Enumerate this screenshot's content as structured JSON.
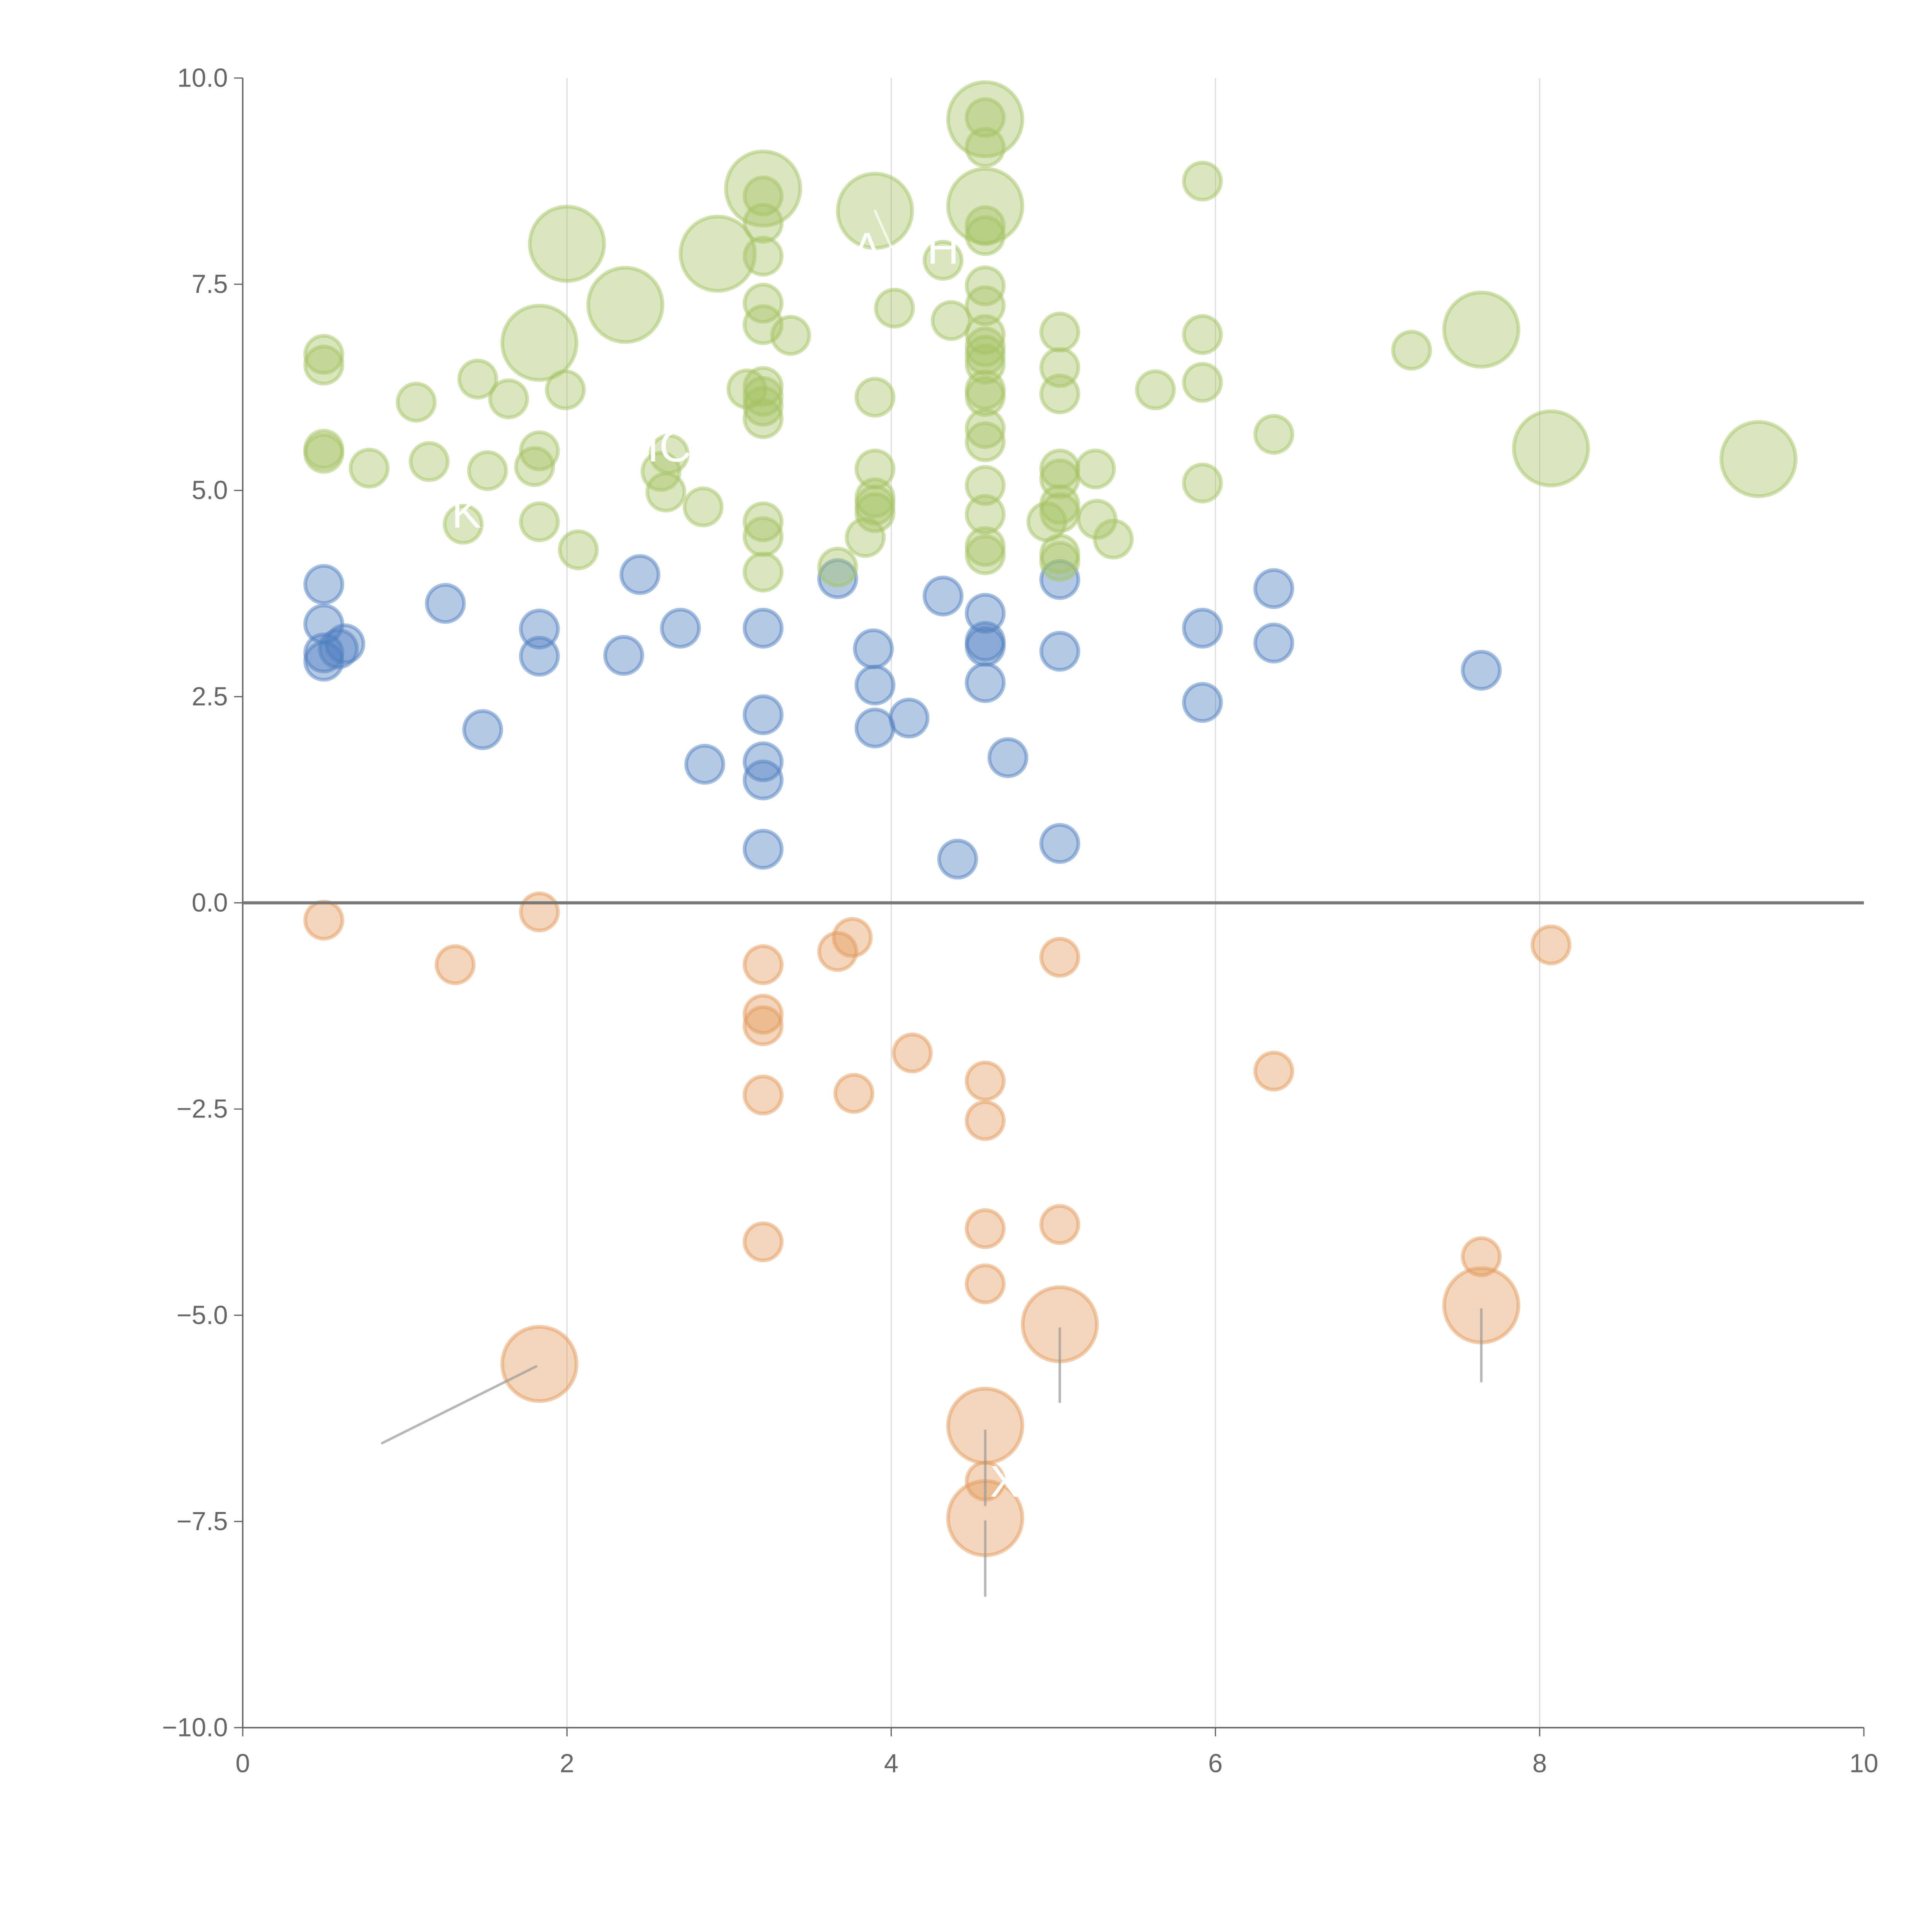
{
  "chart_data": {
    "type": "scatter",
    "title": "",
    "xlabel": "",
    "ylabel": "",
    "xlim": [
      0,
      10
    ],
    "ylim": [
      -10,
      10
    ],
    "x_ticks": [
      "0",
      "2",
      "4",
      "6",
      "8",
      "10"
    ],
    "y_ticks": [
      "10.0",
      "7.5",
      "5.0",
      "2.5",
      "0.0",
      "−2.5",
      "−5.0",
      "−7.5",
      "−10.0"
    ],
    "x_tick_values": [
      0,
      2,
      4,
      6,
      8,
      10
    ],
    "y_tick_values": [
      10,
      7.5,
      5,
      2.5,
      0,
      -2.5,
      -5,
      -7.5,
      -10
    ],
    "grid": "vertical lines at x ticks",
    "zero_line": true,
    "series": [
      {
        "name": "blue",
        "color": "#4f7fc0",
        "points": [
          [
            0.5,
            3.86,
            1
          ],
          [
            0.5,
            3.38,
            1
          ],
          [
            0.5,
            3.03,
            1
          ],
          [
            0.5,
            2.93,
            1
          ],
          [
            0.63,
            3.14,
            1
          ],
          [
            0.59,
            3.08,
            1
          ],
          [
            1.25,
            3.63,
            1
          ],
          [
            1.48,
            2.1,
            1
          ],
          [
            1.83,
            3.32,
            1
          ],
          [
            1.83,
            2.99,
            1
          ],
          [
            2.35,
            3.0,
            1
          ],
          [
            2.45,
            3.98,
            1
          ],
          [
            2.7,
            3.33,
            1
          ],
          [
            2.85,
            1.68,
            1
          ],
          [
            3.21,
            3.33,
            1
          ],
          [
            3.21,
            2.28,
            1
          ],
          [
            3.21,
            1.71,
            1
          ],
          [
            3.21,
            1.49,
            1
          ],
          [
            3.21,
            0.65,
            1
          ],
          [
            3.67,
            3.93,
            1
          ],
          [
            3.89,
            3.08,
            1
          ],
          [
            3.9,
            2.64,
            1
          ],
          [
            3.9,
            2.12,
            1
          ],
          [
            4.11,
            2.24,
            1
          ],
          [
            4.32,
            3.72,
            1
          ],
          [
            4.41,
            0.53,
            1
          ],
          [
            4.58,
            3.51,
            1
          ],
          [
            4.58,
            3.17,
            1
          ],
          [
            4.58,
            3.11,
            1
          ],
          [
            4.58,
            2.67,
            1
          ],
          [
            4.72,
            1.76,
            1
          ],
          [
            5.04,
            3.92,
            1
          ],
          [
            5.04,
            3.05,
            1
          ],
          [
            5.04,
            0.72,
            1
          ],
          [
            5.92,
            3.33,
            1
          ],
          [
            5.92,
            2.43,
            1
          ],
          [
            6.36,
            3.81,
            1
          ],
          [
            6.36,
            3.15,
            1
          ],
          [
            7.64,
            2.82,
            1
          ]
        ]
      },
      {
        "name": "orange",
        "color": "#e39a5c",
        "points": [
          [
            0.5,
            -0.21,
            1
          ],
          [
            1.31,
            -0.75,
            1
          ],
          [
            1.83,
            -0.11,
            1
          ],
          [
            3.21,
            -0.75,
            1
          ],
          [
            3.21,
            -1.35,
            1
          ],
          [
            3.21,
            -1.49,
            1
          ],
          [
            3.21,
            -2.33,
            1
          ],
          [
            3.21,
            -4.11,
            1
          ],
          [
            3.67,
            -0.59,
            1
          ],
          [
            3.76,
            -0.42,
            1
          ],
          [
            3.77,
            -2.31,
            1
          ],
          [
            4.13,
            -1.82,
            1
          ],
          [
            4.58,
            -2.16,
            1
          ],
          [
            4.58,
            -2.64,
            1
          ],
          [
            4.58,
            -3.95,
            1
          ],
          [
            4.58,
            -4.62,
            1
          ],
          [
            4.58,
            -7.01,
            1
          ],
          [
            5.04,
            -0.66,
            1
          ],
          [
            5.04,
            -3.9,
            1
          ],
          [
            6.36,
            -2.04,
            1
          ],
          [
            7.64,
            -4.29,
            1
          ],
          [
            8.07,
            -0.51,
            1
          ],
          [
            1.83,
            -5.59,
            4
          ],
          [
            5.04,
            -5.11,
            4
          ],
          [
            7.64,
            -4.88,
            4
          ],
          [
            4.58,
            -6.34,
            4
          ],
          [
            4.58,
            -7.46,
            4
          ]
        ]
      },
      {
        "name": "green",
        "color": "#a5c364",
        "points": [
          [
            0.5,
            6.65,
            1
          ],
          [
            0.5,
            6.52,
            1
          ],
          [
            0.5,
            5.5,
            1
          ],
          [
            0.5,
            5.45,
            1
          ],
          [
            0.78,
            5.27,
            1
          ],
          [
            1.07,
            6.07,
            1
          ],
          [
            1.15,
            5.35,
            1
          ],
          [
            1.45,
            6.35,
            1
          ],
          [
            1.51,
            5.24,
            1
          ],
          [
            1.64,
            6.11,
            1
          ],
          [
            1.36,
            4.59,
            1
          ],
          [
            1.83,
            5.48,
            1
          ],
          [
            1.8,
            5.29,
            1
          ],
          [
            1.83,
            4.62,
            1
          ],
          [
            1.99,
            6.22,
            1
          ],
          [
            2.07,
            4.28,
            1
          ],
          [
            2.61,
            4.98,
            1
          ],
          [
            2.58,
            5.23,
            1
          ],
          [
            2.63,
            5.44,
            1
          ],
          [
            2.84,
            4.8,
            1
          ],
          [
            3.11,
            6.23,
            1
          ],
          [
            3.21,
            8.57,
            1
          ],
          [
            3.21,
            8.24,
            1
          ],
          [
            3.21,
            7.84,
            1
          ],
          [
            3.21,
            7.27,
            1
          ],
          [
            3.21,
            7.01,
            1
          ],
          [
            3.21,
            6.26,
            1
          ],
          [
            3.21,
            6.14,
            1
          ],
          [
            3.21,
            6.02,
            1
          ],
          [
            3.21,
            5.87,
            1
          ],
          [
            3.21,
            4.62,
            1
          ],
          [
            3.21,
            4.44,
            1
          ],
          [
            3.21,
            4.01,
            1
          ],
          [
            3.38,
            6.88,
            1
          ],
          [
            3.67,
            4.07,
            1
          ],
          [
            3.84,
            4.43,
            1
          ],
          [
            3.9,
            6.13,
            1
          ],
          [
            3.9,
            5.26,
            1
          ],
          [
            3.9,
            4.91,
            1
          ],
          [
            3.9,
            4.82,
            1
          ],
          [
            3.9,
            4.73,
            1
          ],
          [
            4.02,
            7.21,
            1
          ],
          [
            4.32,
            7.79,
            1
          ],
          [
            4.37,
            7.06,
            1
          ],
          [
            4.58,
            9.52,
            1
          ],
          [
            4.58,
            9.16,
            1
          ],
          [
            4.58,
            8.21,
            1
          ],
          [
            4.58,
            8.09,
            1
          ],
          [
            4.58,
            7.48,
            1
          ],
          [
            4.58,
            7.24,
            1
          ],
          [
            4.58,
            6.89,
            1
          ],
          [
            4.58,
            6.74,
            1
          ],
          [
            4.58,
            6.64,
            1
          ],
          [
            4.58,
            6.53,
            1
          ],
          [
            4.58,
            6.22,
            1
          ],
          [
            4.58,
            6.14,
            1
          ],
          [
            4.58,
            5.75,
            1
          ],
          [
            4.58,
            5.59,
            1
          ],
          [
            4.58,
            5.06,
            1
          ],
          [
            4.58,
            4.71,
            1
          ],
          [
            4.58,
            4.32,
            1
          ],
          [
            4.58,
            4.22,
            1
          ],
          [
            4.96,
            4.62,
            1
          ],
          [
            5.04,
            6.92,
            1
          ],
          [
            5.04,
            6.49,
            1
          ],
          [
            5.04,
            6.17,
            1
          ],
          [
            5.04,
            5.26,
            1
          ],
          [
            5.04,
            5.14,
            1
          ],
          [
            5.04,
            4.83,
            1
          ],
          [
            5.04,
            4.73,
            1
          ],
          [
            5.04,
            4.23,
            1
          ],
          [
            5.04,
            4.14,
            1
          ],
          [
            5.26,
            5.26,
            1
          ],
          [
            5.27,
            4.65,
            1
          ],
          [
            5.37,
            4.41,
            1
          ],
          [
            5.63,
            6.22,
            1
          ],
          [
            5.92,
            8.75,
            1
          ],
          [
            5.92,
            6.89,
            1
          ],
          [
            5.92,
            6.31,
            1
          ],
          [
            5.92,
            5.09,
            1
          ],
          [
            6.36,
            5.68,
            1
          ],
          [
            7.21,
            6.7,
            1
          ],
          [
            2.0,
            7.99,
            4
          ],
          [
            2.36,
            7.25,
            4
          ],
          [
            1.83,
            6.79,
            4
          ],
          [
            2.93,
            7.87,
            4
          ],
          [
            3.21,
            8.66,
            4
          ],
          [
            3.9,
            8.39,
            4
          ],
          [
            4.58,
            9.5,
            4
          ],
          [
            4.58,
            8.45,
            4
          ],
          [
            7.64,
            6.95,
            4
          ],
          [
            8.07,
            5.51,
            4
          ],
          [
            9.35,
            5.38,
            4
          ]
        ]
      }
    ],
    "annotations": [
      {
        "text": "A",
        "x": 3.85,
        "y": 7.75,
        "from": [
          3.9,
          8.39
        ],
        "to": [
          4.0,
          7.95
        ]
      },
      {
        "text": "H",
        "x": 4.32,
        "y": 7.75
      },
      {
        "text": "IC",
        "x": 2.63,
        "y": 5.35
      },
      {
        "text": "K",
        "x": 1.38,
        "y": 4.55
      },
      {
        "text": "X",
        "x": 4.7,
        "y": -7.2
      },
      {
        "text": "",
        "x": 0.86,
        "y": -6.55,
        "from": [
          1.81,
          -5.62
        ],
        "to": [
          0.86,
          -6.55
        ],
        "leader": "gray"
      },
      {
        "text": "",
        "x": 5.04,
        "y": -6.05,
        "from": [
          5.04,
          -5.16
        ],
        "to": [
          5.04,
          -6.05
        ],
        "leader": "gray"
      },
      {
        "text": "",
        "x": 7.64,
        "y": -5.8,
        "from": [
          7.64,
          -4.93
        ],
        "to": [
          7.64,
          -5.8
        ],
        "leader": "gray"
      },
      {
        "text": "",
        "x": 4.58,
        "y": -7.3,
        "from": [
          4.58,
          -6.4
        ],
        "to": [
          4.58,
          -7.3
        ],
        "leader": "gray"
      },
      {
        "text": "",
        "x": 4.58,
        "y": -8.4,
        "from": [
          4.58,
          -7.5
        ],
        "to": [
          4.58,
          -8.4
        ],
        "leader": "gray"
      }
    ]
  }
}
